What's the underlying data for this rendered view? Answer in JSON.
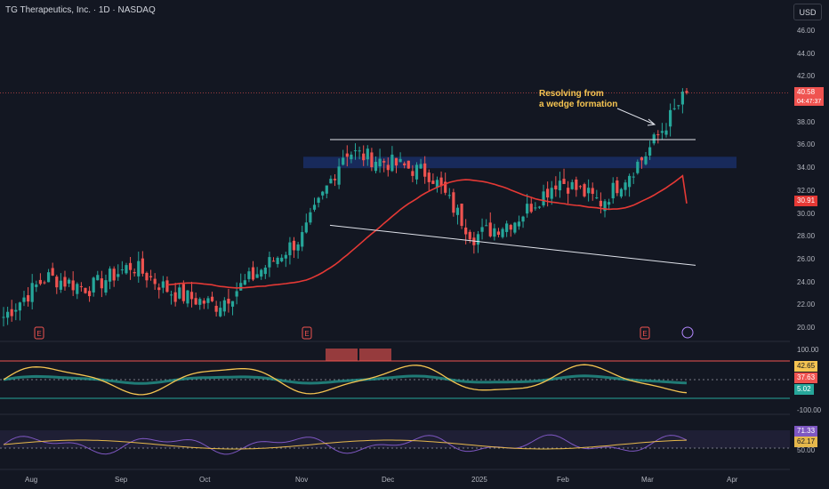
{
  "header": {
    "symbol_title": "TG Therapeutics, Inc. · 1D · NASDAQ",
    "currency": "USD"
  },
  "colors": {
    "background": "#131722",
    "up": "#26a69a",
    "down": "#ef5350",
    "ma": "#e53935",
    "zone": "#1e3a8a",
    "annotation": "#f5c451",
    "stoch_k": "#f5c451",
    "rsi": "#7e57c2",
    "rsi_ma": "#e6b84b"
  },
  "annotation": {
    "line1": "Resolving from",
    "line2": "a wedge formation"
  },
  "price_axis": {
    "ticks": [
      "46.00",
      "44.00",
      "42.00",
      "40.00",
      "38.00",
      "36.00",
      "34.00",
      "32.00",
      "30.00",
      "28.00",
      "26.00",
      "24.00",
      "22.00",
      "20.00"
    ],
    "last_price_label": "40.58",
    "countdown_label": "04:47:37",
    "ma_label": "30.91"
  },
  "osc_axis": {
    "upper": "100.00",
    "lower": "-100.00",
    "value_1": "42.65",
    "value_2": "37.63",
    "value_3": "5.02"
  },
  "rsi_axis": {
    "value_1": "71.33",
    "value_2": "62.17",
    "value_3": "50.00"
  },
  "x_axis": {
    "labels": [
      "Aug",
      "Sep",
      "Oct",
      "Nov",
      "Dec",
      "2025",
      "Feb",
      "Mar",
      "Apr"
    ]
  },
  "event_markers": [
    "E",
    "E",
    "E"
  ],
  "chart_data": {
    "type": "candlestick",
    "ylim": [
      19,
      47
    ],
    "ohlc_approx": [
      {
        "x": "Aug",
        "close": 21.0
      },
      {
        "x": "mid-Aug",
        "close": 24.5
      },
      {
        "x": "Sep",
        "close": 23.5
      },
      {
        "x": "late-Sep",
        "close": 25.5
      },
      {
        "x": "Oct",
        "close": 23.0
      },
      {
        "x": "mid-Oct",
        "close": 22.0
      },
      {
        "x": "late-Oct",
        "close": 25.0
      },
      {
        "x": "Nov",
        "close": 28.0
      },
      {
        "x": "mid-Nov",
        "close": 35.5
      },
      {
        "x": "Dec",
        "close": 34.5
      },
      {
        "x": "mid-Dec",
        "close": 33.5
      },
      {
        "x": "2025",
        "close": 28.0
      },
      {
        "x": "mid-Jan",
        "close": 29.5
      },
      {
        "x": "Feb",
        "close": 33.0
      },
      {
        "x": "mid-Feb",
        "close": 31.0
      },
      {
        "x": "Mar",
        "close": 35.0
      },
      {
        "x": "mid-Mar",
        "close": 40.58
      }
    ],
    "moving_average": {
      "last": 30.91
    },
    "resistance_line": 36.5,
    "supply_zone": [
      34.0,
      35.0
    ],
    "support_trendline": {
      "start": 29.0,
      "end": 25.5
    },
    "last_price": 40.58
  }
}
